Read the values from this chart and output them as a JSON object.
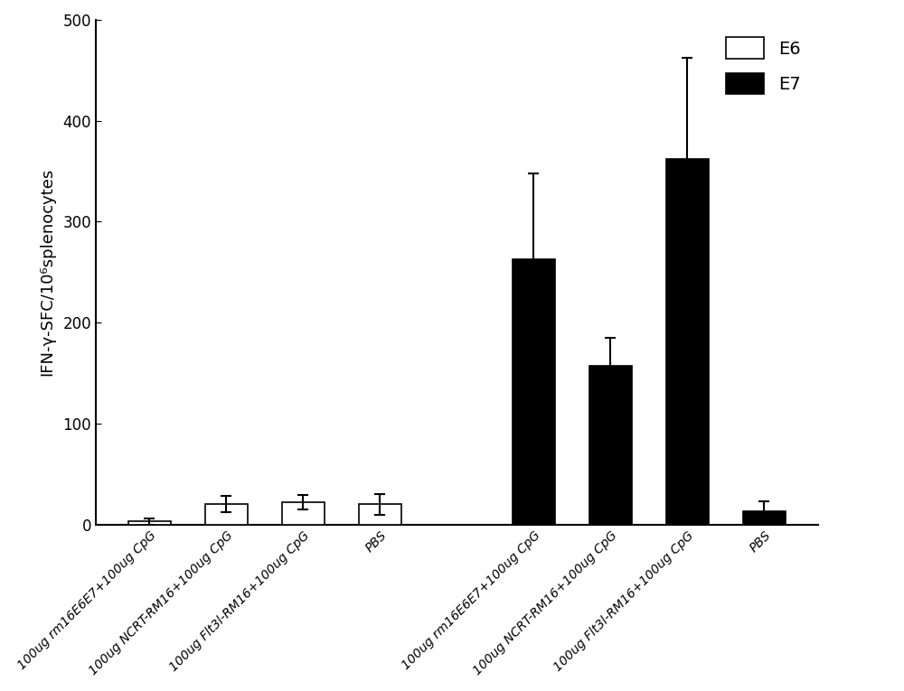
{
  "groups": [
    {
      "label": "100ug rm16E6E7+100ug CpG",
      "bar_type": "e6",
      "value": 3,
      "err": 3
    },
    {
      "label": "100ug NCRT-RM16+100ug CpG",
      "bar_type": "e6",
      "value": 20,
      "err": 8
    },
    {
      "label": "100ug Flt3l-RM16+100ug CpG",
      "bar_type": "e6",
      "value": 22,
      "err": 7
    },
    {
      "label": "PBS",
      "bar_type": "e6",
      "value": 20,
      "err": 10
    },
    {
      "label": "100ug rm16E6E7+100ug CpG",
      "bar_type": "e7",
      "value": 263,
      "err": 85
    },
    {
      "label": "100ug NCRT-RM16+100ug CpG",
      "bar_type": "e7",
      "value": 157,
      "err": 28
    },
    {
      "label": "100ug Flt3l-RM16+100ug CpG",
      "bar_type": "e7",
      "value": 362,
      "err": 100
    },
    {
      "label": "PBS",
      "bar_type": "e7",
      "value": 13,
      "err": 10
    }
  ],
  "x_positions": [
    0,
    1,
    2,
    3,
    5,
    6,
    7,
    8
  ],
  "ylabel": "IFN-γ-SFC/10⁶splenocytes",
  "ylim": [
    0,
    500
  ],
  "yticks": [
    0,
    100,
    200,
    300,
    400,
    500
  ],
  "bar_width": 0.55,
  "e6_color": "#ffffff",
  "e7_color": "#000000",
  "edge_color": "#000000",
  "legend_e6": "E6",
  "legend_e7": "E7",
  "capsize": 4,
  "elinewidth": 1.5,
  "ecapthick": 1.5,
  "tick_fontsize": 10,
  "ylabel_fontsize": 13,
  "legend_fontsize": 14
}
